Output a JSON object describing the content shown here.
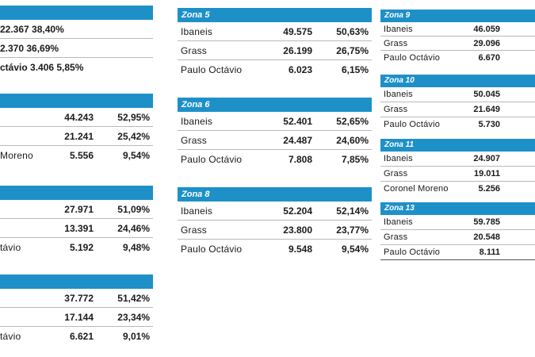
{
  "zone_left_top": {
    "lines": [
      "22.367 38,40%",
      "2.370 36,69%",
      "ctávio 3.406 5,85%"
    ]
  },
  "zone_left_2": {
    "rows": [
      {
        "name": "",
        "votes": "44.243",
        "pct": "52,95%"
      },
      {
        "name": "",
        "votes": "21.241",
        "pct": "25,42%"
      },
      {
        "name": "Moreno",
        "votes": "5.556",
        "pct": "9,54%"
      }
    ]
  },
  "zone_left_3": {
    "rows": [
      {
        "name": "",
        "votes": "27.971",
        "pct": "51,09%"
      },
      {
        "name": "",
        "votes": "13.391",
        "pct": "24,46%"
      },
      {
        "name": "távio",
        "votes": "5.192",
        "pct": "9,48%"
      }
    ]
  },
  "zone_left_4": {
    "rows": [
      {
        "name": "",
        "votes": "37.772",
        "pct": "51,42%"
      },
      {
        "name": "",
        "votes": "17.144",
        "pct": "23,34%"
      },
      {
        "name": "távio",
        "votes": "6.621",
        "pct": "9,01%"
      }
    ]
  },
  "zone5": {
    "title": "Zona 5",
    "rows": [
      {
        "name": "Ibaneis",
        "votes": "49.575",
        "pct": "50,63%"
      },
      {
        "name": "Grass",
        "votes": "26.199",
        "pct": "26,75%"
      },
      {
        "name": "Paulo Octávio",
        "votes": "6.023",
        "pct": "6,15%"
      }
    ]
  },
  "zone6": {
    "title": "Zona 6",
    "rows": [
      {
        "name": "Ibaneis",
        "votes": "52.401",
        "pct": "52,65%"
      },
      {
        "name": "Grass",
        "votes": "24.487",
        "pct": "24,60%"
      },
      {
        "name": "Paulo Octávio",
        "votes": "7.808",
        "pct": "7,85%"
      }
    ]
  },
  "zone8": {
    "title": "Zona 8",
    "rows": [
      {
        "name": "Ibaneis",
        "votes": "52.204",
        "pct": "52,14%"
      },
      {
        "name": "Grass",
        "votes": "23.800",
        "pct": "23,77%"
      },
      {
        "name": "Paulo Octávio",
        "votes": "9.548",
        "pct": "9,54%"
      }
    ]
  },
  "zone9": {
    "title": "Zona 9",
    "rows": [
      {
        "name": "Ibaneis",
        "votes": "46.059"
      },
      {
        "name": "Grass",
        "votes": "29.096"
      },
      {
        "name": "Paulo Octávio",
        "votes": "6.670"
      }
    ]
  },
  "zone10": {
    "title": "Zona 10",
    "rows": [
      {
        "name": "Ibaneis",
        "votes": "50.045"
      },
      {
        "name": "Grass",
        "votes": "21.649"
      },
      {
        "name": "Paulo Octávio",
        "votes": "5.730"
      }
    ]
  },
  "zone11": {
    "title": "Zona 11",
    "rows": [
      {
        "name": "Ibaneis",
        "votes": "24.907"
      },
      {
        "name": "Grass",
        "votes": "19.011"
      },
      {
        "name": "Coronel Moreno",
        "votes": "5.256"
      }
    ]
  },
  "zone13": {
    "title": "Zona 13",
    "rows": [
      {
        "name": "Ibaneis",
        "votes": "59.785"
      },
      {
        "name": "Grass",
        "votes": "20.548"
      },
      {
        "name": "Paulo Octávio",
        "votes": "8.111"
      }
    ]
  },
  "colors": {
    "header_bg": "#1e90c8",
    "header_text": "#ffffff",
    "divider": "#b9b9b9"
  }
}
